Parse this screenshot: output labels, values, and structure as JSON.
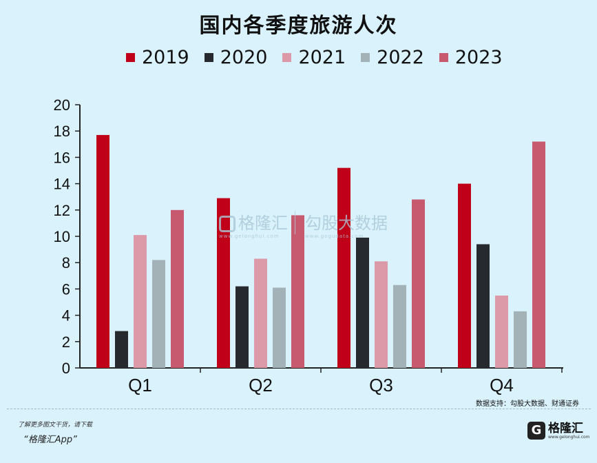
{
  "chart_data": {
    "type": "bar",
    "title": "国内各季度旅游人次",
    "categories": [
      "Q1",
      "Q2",
      "Q3",
      "Q4"
    ],
    "ylim": [
      0,
      20
    ],
    "yticks": [
      "0",
      "2",
      "4",
      "6",
      "8",
      "10",
      "12",
      "14",
      "16",
      "18",
      "20"
    ],
    "grid": false,
    "legend_position": "top",
    "series": [
      {
        "name": "2019",
        "color": "#c00018",
        "values": [
          17.7,
          12.9,
          15.2,
          14.0
        ]
      },
      {
        "name": "2020",
        "color": "#262a2e",
        "values": [
          2.8,
          6.2,
          9.9,
          9.4
        ]
      },
      {
        "name": "2021",
        "color": "#dc9aa8",
        "values": [
          10.1,
          8.3,
          8.1,
          5.5
        ]
      },
      {
        "name": "2022",
        "color": "#a3b2b6",
        "values": [
          8.2,
          6.1,
          6.3,
          4.3
        ]
      },
      {
        "name": "2023",
        "color": "#c85a70",
        "values": [
          12.0,
          11.6,
          12.8,
          17.2
        ]
      }
    ]
  },
  "watermark": {
    "brand": "格隆汇",
    "brand_site": "www.gelonghui.com",
    "secondary": "勾股大数据",
    "secondary_site": "www.gogudata.com"
  },
  "source_note": "数据支持：勾股大数据、财通证券",
  "footer": {
    "tagline": "了解更多图文干货，请下载",
    "app_name": "“格隆汇App”",
    "logo_letter": "G",
    "logo_text": "格隆汇",
    "logo_site": "www.gelonghui.com"
  }
}
